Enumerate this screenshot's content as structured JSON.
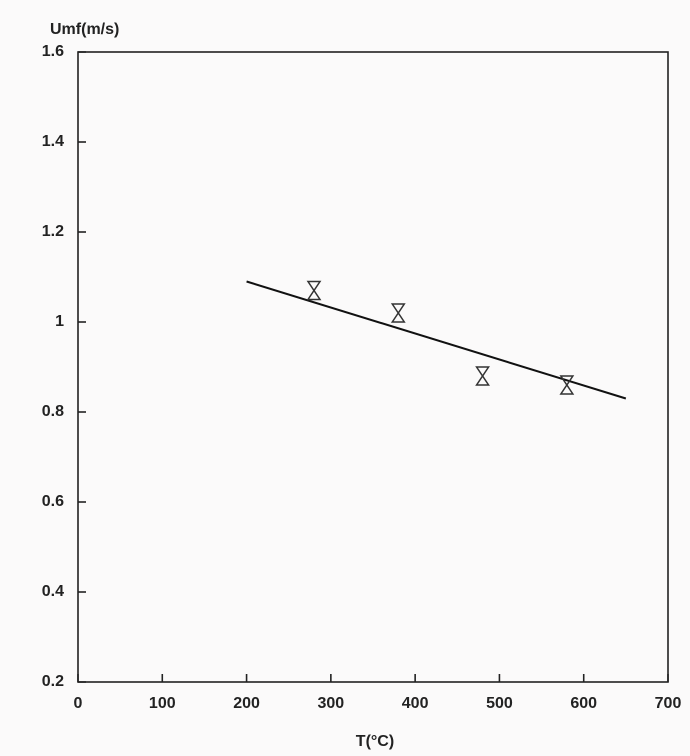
{
  "chart_data": {
    "type": "scatter",
    "x_label": "T(°C)",
    "y_label": "Umf(m/s)",
    "xlim": [
      0,
      700
    ],
    "xticks": [
      0,
      100,
      200,
      300,
      400,
      500,
      600,
      700
    ],
    "ylim": [
      0.2,
      1.6
    ],
    "yticks": [
      0.2,
      0.4,
      0.6,
      0.8,
      1,
      1.2,
      1.4,
      1.6
    ],
    "series": [
      {
        "color": "#333333",
        "marker": "hourglass",
        "x": [
          280,
          380,
          480,
          580
        ],
        "values": [
          1.07,
          1.02,
          0.88,
          0.86
        ],
        "errors": [
          0.02,
          0.02,
          0.02,
          0.02
        ]
      }
    ],
    "fit": {
      "color": "#111111",
      "x": [
        200,
        650
      ],
      "values": [
        1.09,
        0.83
      ]
    }
  }
}
